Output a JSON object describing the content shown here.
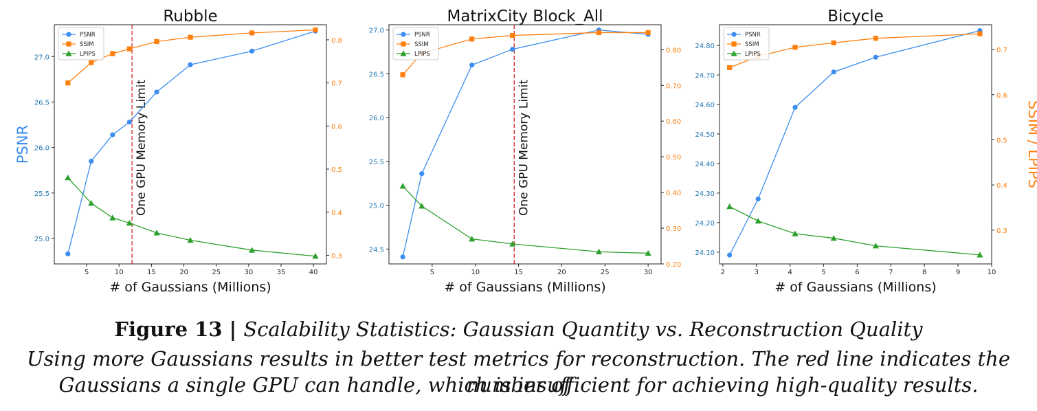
{
  "caption": {
    "label": "Figure 13",
    "separator": " | ",
    "title": "Scalability Statistics: Gaussian Quantity vs. Reconstruction Quality",
    "line2": "Using more Gaussians results in better test metrics for reconstruction. The red line indicates the number of",
    "line3": "Gaussians a single GPU can handle, which is insufficient for achieving high-quality results."
  },
  "colors": {
    "psnr": "#1f77b4",
    "psnr_line": "#3b8df0",
    "ssim": "#ff7f0e",
    "lpips": "#2ca02c",
    "limit": "#cc2222"
  },
  "chart_data": [
    {
      "type": "line",
      "title": "Rubble",
      "xlabel": "# of Gaussians (Millions)",
      "ylabel_left": "PSNR",
      "ylabel_right": "",
      "xlim": [
        0,
        42
      ],
      "ylim_left": [
        24.72,
        27.35
      ],
      "ylim_right": [
        0.28,
        0.835
      ],
      "xticks": [
        5,
        10,
        15,
        20,
        25,
        30,
        35,
        40
      ],
      "yticks_left": [
        25.0,
        25.5,
        26.0,
        26.5,
        27.0
      ],
      "yticks_right": [
        0.3,
        0.4,
        0.5,
        0.6,
        0.7,
        0.8
      ],
      "x": [
        2.1,
        5.7,
        9.0,
        11.6,
        15.8,
        21.0,
        30.5,
        40.3
      ],
      "series": [
        {
          "name": "PSNR",
          "axis": "left",
          "marker": "circle",
          "values": [
            24.83,
            25.85,
            26.14,
            26.28,
            26.61,
            26.91,
            27.06,
            27.28
          ]
        },
        {
          "name": "SSIM",
          "axis": "right",
          "marker": "square",
          "values": [
            0.7,
            0.747,
            0.768,
            0.779,
            0.796,
            0.806,
            0.816,
            0.823
          ]
        },
        {
          "name": "LPIPS",
          "axis": "right",
          "marker": "triangle",
          "values": [
            0.48,
            0.421,
            0.387,
            0.375,
            0.352,
            0.335,
            0.312,
            0.298
          ]
        }
      ],
      "vline": {
        "x": 12.0,
        "label": "One GPU Memory Limit"
      },
      "legend": "top-left"
    },
    {
      "type": "line",
      "title": "MatrixCity Block_All",
      "xlabel": "# of Gaussians (Millions)",
      "ylabel_left": "",
      "ylabel_right": "",
      "xlim": [
        0,
        31.5
      ],
      "ylim_left": [
        24.33,
        27.06
      ],
      "ylim_right": [
        0.2,
        0.87
      ],
      "xticks": [
        5,
        10,
        15,
        20,
        25,
        30
      ],
      "yticks_left": [
        24.5,
        25.0,
        25.5,
        26.0,
        26.5,
        27.0
      ],
      "yticks_right": [
        0.2,
        0.3,
        0.4,
        0.5,
        0.6,
        0.7,
        0.8
      ],
      "x": [
        1.6,
        3.8,
        9.6,
        14.3,
        24.3,
        30.0
      ],
      "series": [
        {
          "name": "PSNR",
          "axis": "left",
          "marker": "circle",
          "values": [
            24.41,
            25.36,
            26.6,
            26.78,
            27.0,
            26.95
          ]
        },
        {
          "name": "SSIM",
          "axis": "right",
          "marker": "square",
          "values": [
            0.73,
            0.79,
            0.83,
            0.84,
            0.848,
            0.848
          ]
        },
        {
          "name": "LPIPS",
          "axis": "right",
          "marker": "triangle",
          "values": [
            0.418,
            0.362,
            0.27,
            0.256,
            0.234,
            0.23
          ]
        }
      ],
      "vline": {
        "x": 14.5,
        "label": "One GPU Memory Limit"
      },
      "legend": "top-left"
    },
    {
      "type": "line",
      "title": "Bicycle",
      "xlabel": "# of Gaussians (Millions)",
      "ylabel_left": "",
      "ylabel_right": "SSIM / LPIPS",
      "xlim": [
        1.9,
        10.0
      ],
      "ylim_left": [
        24.06,
        24.87
      ],
      "ylim_right": [
        0.225,
        0.755
      ],
      "xticks": [
        2,
        3,
        4,
        5,
        6,
        7,
        8,
        9,
        10
      ],
      "yticks_left": [
        24.1,
        24.2,
        24.3,
        24.4,
        24.5,
        24.6,
        24.7,
        24.8
      ],
      "yticks_right": [
        0.3,
        0.4,
        0.5,
        0.6,
        0.7
      ],
      "x": [
        2.2,
        3.05,
        4.15,
        5.3,
        6.55,
        9.65
      ],
      "series": [
        {
          "name": "PSNR",
          "axis": "left",
          "marker": "circle",
          "values": [
            24.09,
            24.28,
            24.59,
            24.71,
            24.76,
            24.85
          ]
        },
        {
          "name": "SSIM",
          "axis": "right",
          "marker": "square",
          "values": [
            0.66,
            0.685,
            0.705,
            0.715,
            0.725,
            0.735
          ]
        },
        {
          "name": "LPIPS",
          "axis": "right",
          "marker": "triangle",
          "values": [
            0.352,
            0.32,
            0.292,
            0.282,
            0.265,
            0.245
          ]
        }
      ],
      "vline": null,
      "legend": "top-left"
    }
  ]
}
